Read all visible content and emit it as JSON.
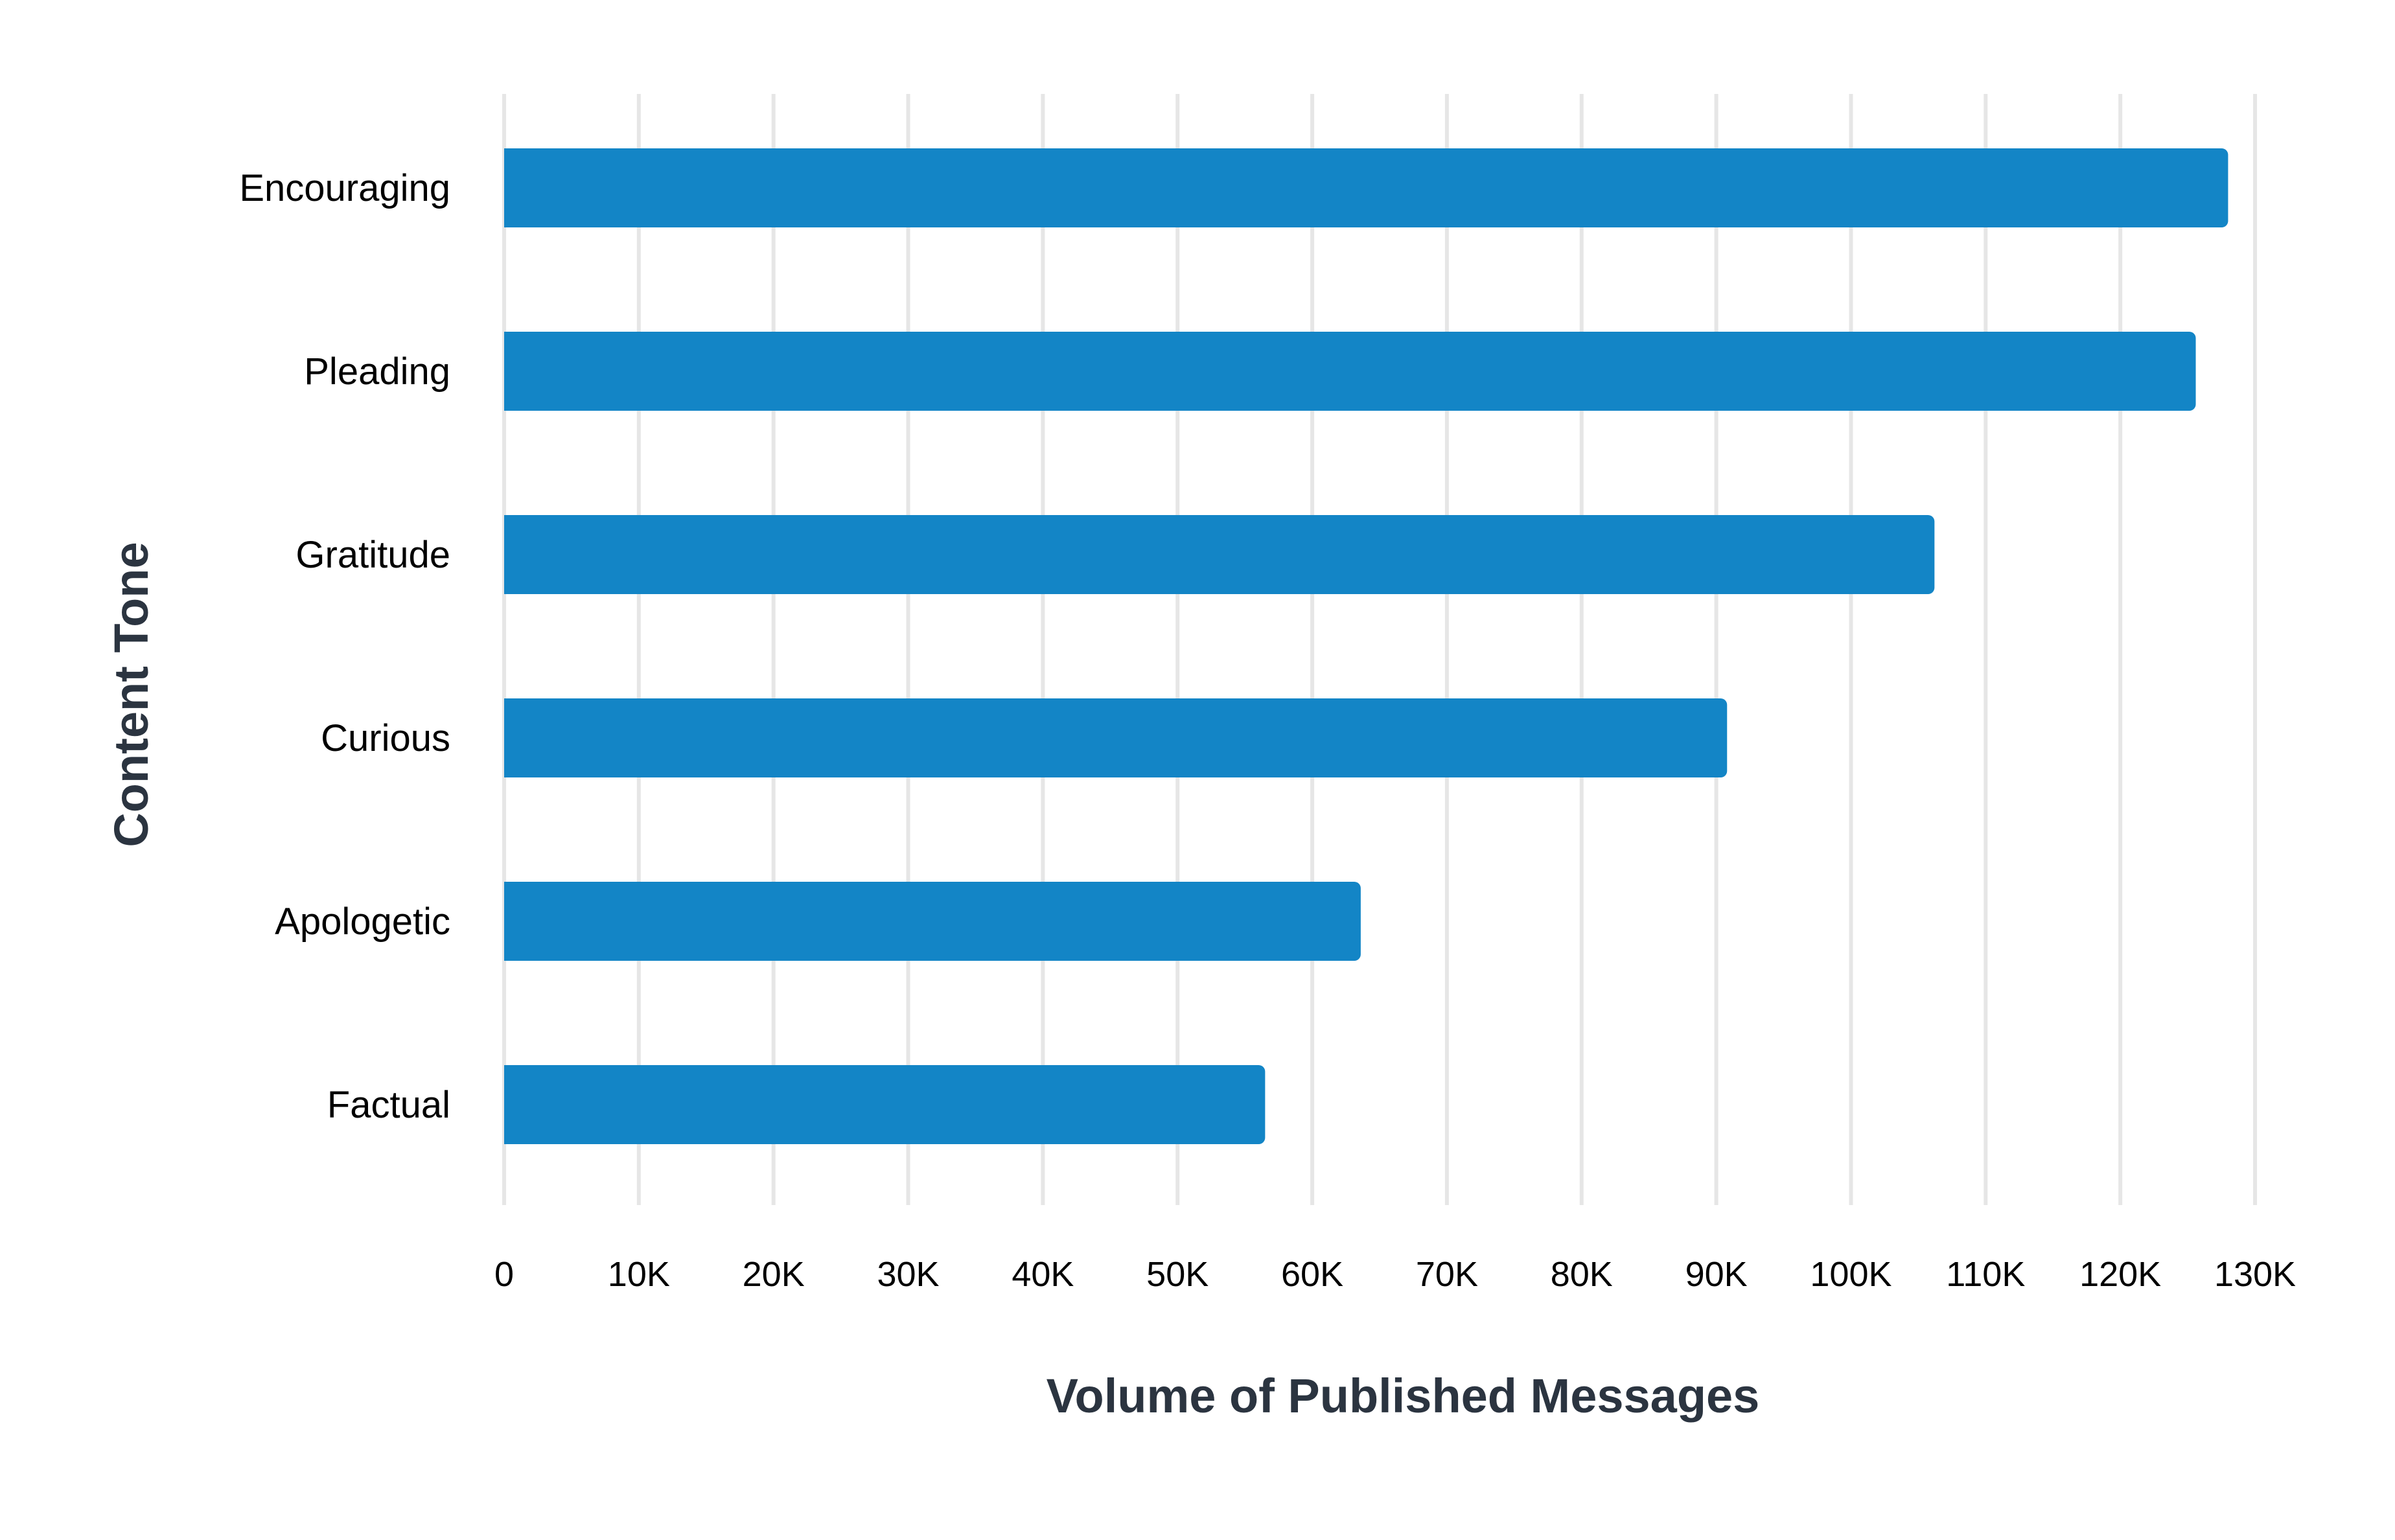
{
  "chart_data": {
    "type": "bar",
    "orientation": "horizontal",
    "categories": [
      "Encouraging",
      "Pleading",
      "Gratitude",
      "Curious",
      "Apologetic",
      "Factual"
    ],
    "values": [
      128000,
      125600,
      106200,
      90800,
      63600,
      56500
    ],
    "xlabel": "Volume of Published Messages",
    "ylabel": "Content Tone",
    "xlim": [
      0,
      130000
    ],
    "x_ticks": [
      0,
      10000,
      20000,
      30000,
      40000,
      50000,
      60000,
      70000,
      80000,
      90000,
      100000,
      110000,
      120000,
      130000
    ],
    "x_tick_labels": [
      "0",
      "10K",
      "20K",
      "30K",
      "40K",
      "50K",
      "60K",
      "70K",
      "80K",
      "90K",
      "100K",
      "110K",
      "120K",
      "130K"
    ],
    "grid": "vertical",
    "legend": "none",
    "colors": {
      "bar": "#1385c6",
      "grid": "#e6e6e6",
      "axis_title": "#2b3440",
      "label": "#000000"
    }
  }
}
